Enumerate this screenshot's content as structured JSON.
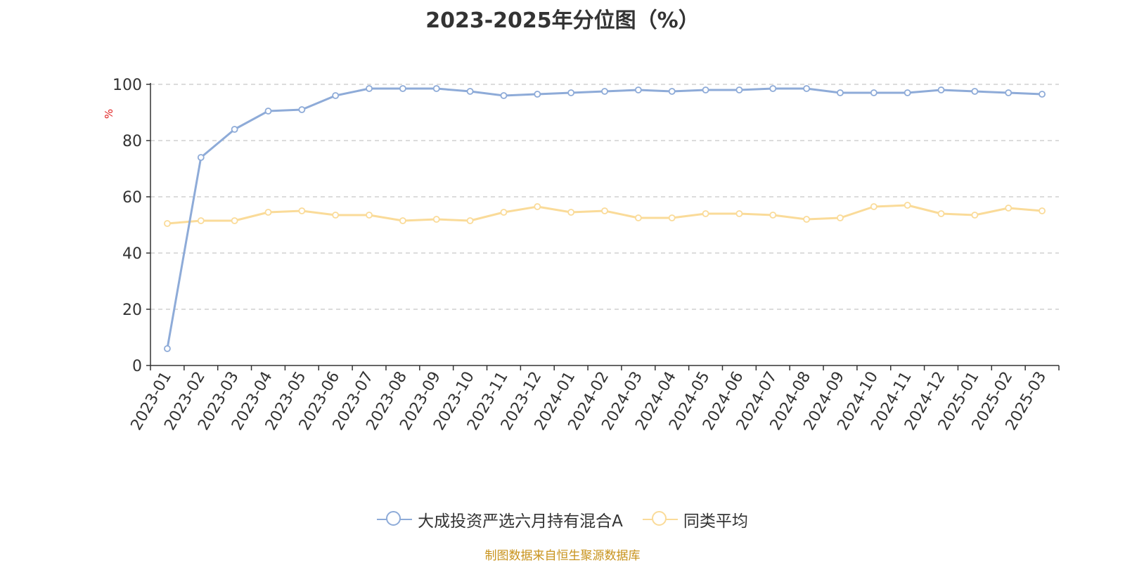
{
  "title": "2023-2025年分位图（%）",
  "source": "制图数据来自恒生聚源数据库",
  "chart_data": {
    "type": "line",
    "ylabel": "%",
    "ylim": [
      0,
      100
    ],
    "yticks": [
      0,
      20,
      40,
      60,
      80,
      100
    ],
    "grid": true,
    "legend_position": "bottom-center",
    "categories": [
      "2023-01",
      "2023-02",
      "2023-03",
      "2023-04",
      "2023-05",
      "2023-06",
      "2023-07",
      "2023-08",
      "2023-09",
      "2023-10",
      "2023-11",
      "2023-12",
      "2024-01",
      "2024-02",
      "2024-03",
      "2024-04",
      "2024-05",
      "2024-06",
      "2024-07",
      "2024-08",
      "2024-09",
      "2024-10",
      "2024-11",
      "2024-12",
      "2025-01",
      "2025-02",
      "2025-03"
    ],
    "series": [
      {
        "name": "大成投资严选六月持有混合A",
        "color": "#8eabd8",
        "values": [
          6,
          74,
          84,
          90.5,
          91,
          96,
          98.5,
          98.5,
          98.5,
          97.5,
          96,
          96.5,
          97,
          97.5,
          98,
          97.5,
          98,
          98,
          98.5,
          98.5,
          97,
          97,
          97,
          98,
          97.5,
          97,
          96.5
        ]
      },
      {
        "name": "同类平均",
        "color": "#fadb99",
        "values": [
          50.5,
          51.5,
          51.5,
          54.5,
          55,
          53.5,
          53.5,
          51.5,
          52,
          51.5,
          54.5,
          56.5,
          54.5,
          55,
          52.5,
          52.5,
          54,
          54,
          53.5,
          52,
          52.5,
          56.5,
          57,
          54,
          53.5,
          56,
          55
        ]
      }
    ]
  }
}
